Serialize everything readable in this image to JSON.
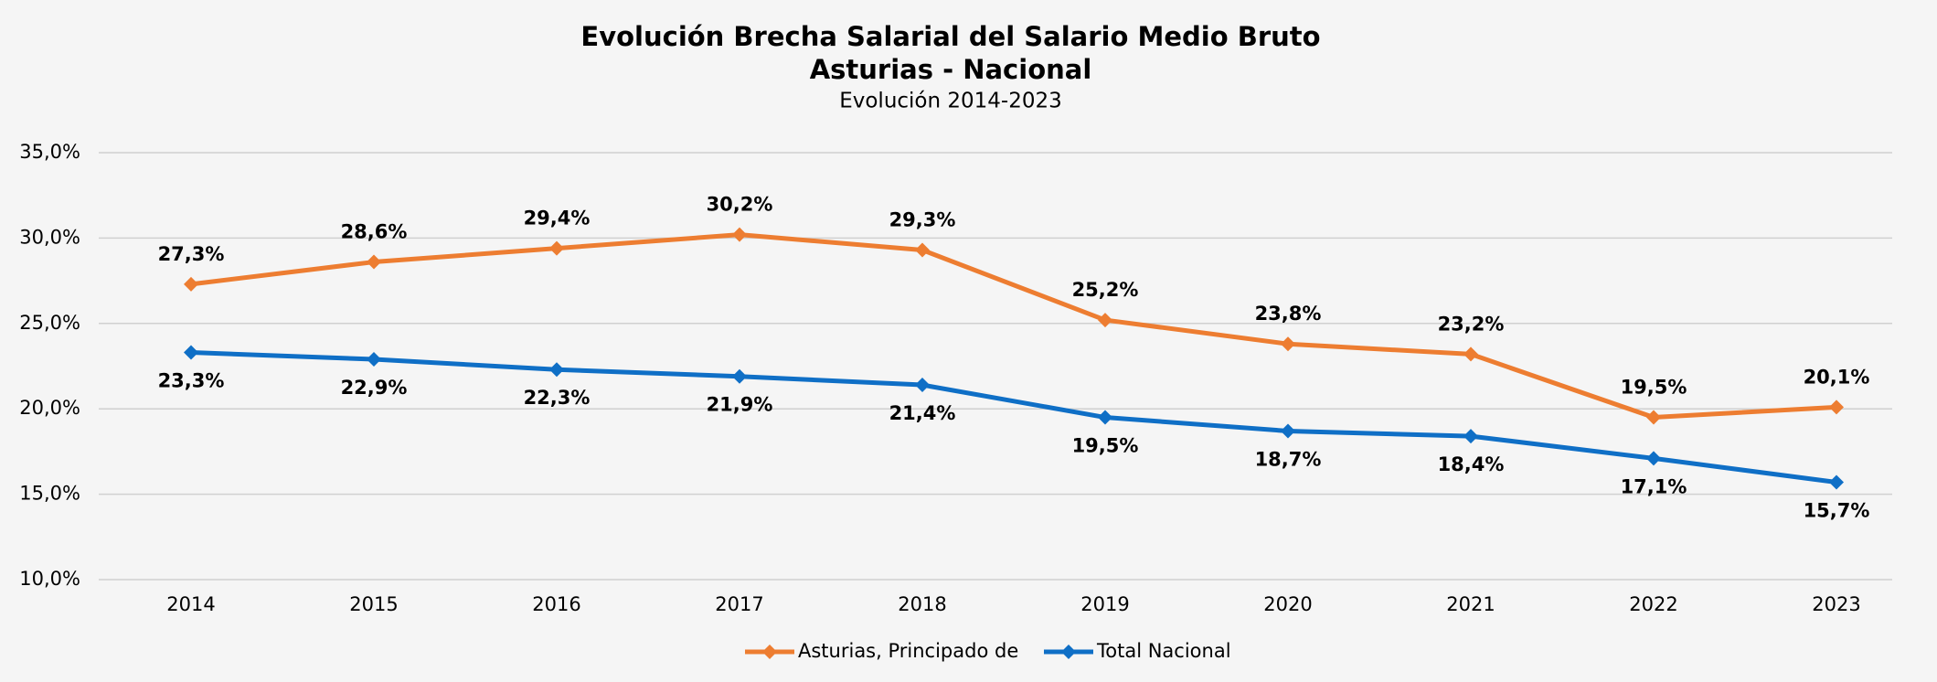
{
  "chart_data": {
    "type": "line",
    "title": "Evolución Brecha Salarial del Salario Medio Bruto",
    "subtitle_bold": "Asturias - Nacional",
    "subtitle": "Evolución 2014-2023",
    "categories": [
      "2014",
      "2015",
      "2016",
      "2017",
      "2018",
      "2019",
      "2020",
      "2021",
      "2022",
      "2023"
    ],
    "series": [
      {
        "name": "Asturias, Principado de",
        "color": "#ed7d31",
        "values": [
          27.3,
          28.6,
          29.4,
          30.2,
          29.3,
          25.2,
          23.8,
          23.2,
          19.5,
          20.1
        ],
        "value_labels": [
          "27,3%",
          "28,6%",
          "29,4%",
          "30,2%",
          "29,3%",
          "25,2%",
          "23,8%",
          "23,2%",
          "19,5%",
          "20,1%"
        ]
      },
      {
        "name": "Total Nacional",
        "color": "#0f6fc6",
        "values": [
          23.3,
          22.9,
          22.3,
          21.9,
          21.4,
          19.5,
          18.7,
          18.4,
          17.1,
          15.7
        ],
        "value_labels": [
          "23,3%",
          "22,9%",
          "22,3%",
          "21,9%",
          "21,4%",
          "19,5%",
          "18,7%",
          "18,4%",
          "17,1%",
          "15,7%"
        ]
      }
    ],
    "ylim": [
      10,
      35
    ],
    "yticks": [
      {
        "value": 10,
        "label": "10,0%"
      },
      {
        "value": 15,
        "label": "15,0%"
      },
      {
        "value": 20,
        "label": "20,0%"
      },
      {
        "value": 25,
        "label": "25,0%"
      },
      {
        "value": 30,
        "label": "30,0%"
      },
      {
        "value": 35,
        "label": "35,0%"
      }
    ],
    "grid": true,
    "legend": "bottom"
  }
}
